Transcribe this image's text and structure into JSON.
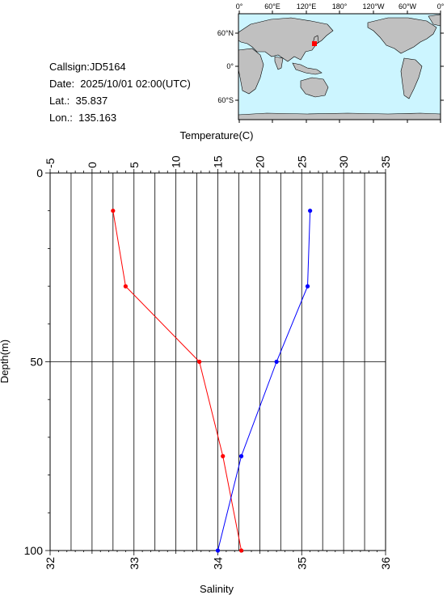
{
  "info": {
    "callsign": "Callsign:JD5164",
    "date": "Date:  2025/10/01 02:00(UTC)",
    "lat": "Lat.:  35.837",
    "lon": "Lon.:  135.163"
  },
  "map": {
    "lon_labels": [
      "0°",
      "60°E",
      "120°E",
      "180°",
      "120°W",
      "60°W",
      "0°"
    ],
    "lat_labels": [
      "60°N",
      "0°",
      "60°S"
    ],
    "station_marker_color": "#ff0000",
    "ocean_color": "#ccf5ff",
    "land_color": "#c0c0c0"
  },
  "chart_data": {
    "type": "line",
    "top_axis": {
      "label": "Temperature(C)",
      "range": [
        -5,
        35
      ],
      "ticks": [
        "-5",
        "0",
        "5",
        "10",
        "15",
        "20",
        "25",
        "30",
        "35"
      ]
    },
    "bottom_axis": {
      "label": "Salinity",
      "range": [
        32,
        36
      ],
      "ticks": [
        "32",
        "33",
        "34",
        "35",
        "36"
      ]
    },
    "y_axis": {
      "label": "Depth(m)",
      "range": [
        0,
        100
      ],
      "inverted": true,
      "ticks": [
        "0",
        "50",
        "100"
      ]
    },
    "grid": true,
    "series": [
      {
        "axis": "temperature",
        "color": "#ff0000",
        "points": [
          {
            "value": 2.5,
            "depth": 10
          },
          {
            "value": 4.0,
            "depth": 30
          },
          {
            "value": 12.8,
            "depth": 50
          },
          {
            "value": 15.6,
            "depth": 75
          },
          {
            "value": 17.8,
            "depth": 100
          }
        ]
      },
      {
        "axis": "salinity",
        "color": "#0000ff",
        "points": [
          {
            "value": 35.1,
            "depth": 10
          },
          {
            "value": 35.07,
            "depth": 30
          },
          {
            "value": 34.7,
            "depth": 50
          },
          {
            "value": 34.28,
            "depth": 75
          },
          {
            "value": 34.0,
            "depth": 100
          }
        ]
      }
    ]
  }
}
